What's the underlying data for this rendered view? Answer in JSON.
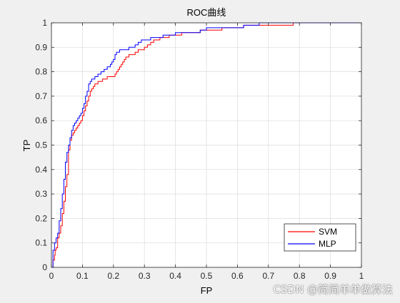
{
  "watermark": "CSDN @简简单单做算法",
  "chart_data": {
    "type": "line",
    "title": "ROC曲线",
    "xlabel": "FP",
    "ylabel": "TP",
    "xlim": [
      0,
      1
    ],
    "ylim": [
      0,
      1
    ],
    "xticks": [
      0,
      0.1,
      0.2,
      0.3,
      0.4,
      0.5,
      0.6,
      0.7,
      0.8,
      0.9,
      1
    ],
    "yticks": [
      0,
      0.1,
      0.2,
      0.3,
      0.4,
      0.5,
      0.6,
      0.7,
      0.8,
      0.9,
      1
    ],
    "xtick_labels": [
      "0",
      "0.1",
      "0.2",
      "0.3",
      "0.4",
      "0.5",
      "0.6",
      "0.7",
      "0.8",
      "0.9",
      "1"
    ],
    "ytick_labels": [
      "0",
      "0.1",
      "0.2",
      "0.3",
      "0.4",
      "0.5",
      "0.6",
      "0.7",
      "0.8",
      "0.9",
      "1"
    ],
    "grid": true,
    "legend_position": "bottom-right",
    "series": [
      {
        "name": "SVM",
        "color": "#ff0000",
        "x": [
          0,
          0.005,
          0.01,
          0.012,
          0.015,
          0.02,
          0.025,
          0.03,
          0.035,
          0.04,
          0.045,
          0.05,
          0.055,
          0.06,
          0.065,
          0.07,
          0.075,
          0.08,
          0.085,
          0.09,
          0.095,
          0.1,
          0.105,
          0.11,
          0.115,
          0.12,
          0.125,
          0.13,
          0.135,
          0.14,
          0.145,
          0.15,
          0.155,
          0.16,
          0.165,
          0.17,
          0.175,
          0.18,
          0.19,
          0.2,
          0.205,
          0.21,
          0.215,
          0.22,
          0.225,
          0.23,
          0.235,
          0.24,
          0.245,
          0.25,
          0.26,
          0.27,
          0.28,
          0.29,
          0.3,
          0.31,
          0.32,
          0.33,
          0.34,
          0.35,
          0.36,
          0.38,
          0.4,
          0.42,
          0.44,
          0.46,
          0.48,
          0.5,
          0.55,
          0.6,
          0.62,
          0.65,
          0.7,
          0.75,
          0.78
        ],
        "y": [
          0,
          0.03,
          0.05,
          0.07,
          0.08,
          0.12,
          0.14,
          0.17,
          0.22,
          0.27,
          0.33,
          0.38,
          0.48,
          0.52,
          0.54,
          0.55,
          0.56,
          0.57,
          0.58,
          0.59,
          0.6,
          0.62,
          0.64,
          0.66,
          0.68,
          0.7,
          0.72,
          0.73,
          0.74,
          0.75,
          0.75,
          0.76,
          0.76,
          0.76,
          0.77,
          0.77,
          0.77,
          0.78,
          0.78,
          0.78,
          0.79,
          0.8,
          0.81,
          0.82,
          0.83,
          0.84,
          0.85,
          0.86,
          0.86,
          0.87,
          0.87,
          0.88,
          0.89,
          0.89,
          0.9,
          0.91,
          0.92,
          0.93,
          0.93,
          0.94,
          0.94,
          0.95,
          0.95,
          0.96,
          0.96,
          0.96,
          0.97,
          0.97,
          0.98,
          0.98,
          0.99,
          0.99,
          0.99,
          0.99,
          1
        ]
      },
      {
        "name": "MLP",
        "color": "#0000ff",
        "x": [
          0,
          0.005,
          0.01,
          0.015,
          0.02,
          0.025,
          0.03,
          0.035,
          0.04,
          0.045,
          0.05,
          0.055,
          0.06,
          0.065,
          0.07,
          0.075,
          0.08,
          0.085,
          0.09,
          0.095,
          0.1,
          0.105,
          0.11,
          0.115,
          0.12,
          0.125,
          0.13,
          0.135,
          0.14,
          0.145,
          0.15,
          0.155,
          0.16,
          0.165,
          0.17,
          0.175,
          0.18,
          0.185,
          0.19,
          0.195,
          0.2,
          0.205,
          0.21,
          0.215,
          0.22,
          0.23,
          0.24,
          0.25,
          0.26,
          0.27,
          0.28,
          0.29,
          0.3,
          0.32,
          0.34,
          0.36,
          0.38,
          0.4,
          0.44,
          0.48,
          0.5,
          0.55,
          0.6,
          0.62,
          0.65,
          0.67,
          0.7,
          0.8,
          0.9,
          1
        ],
        "y": [
          0,
          0.07,
          0.1,
          0.12,
          0.14,
          0.19,
          0.24,
          0.3,
          0.36,
          0.43,
          0.47,
          0.5,
          0.53,
          0.56,
          0.58,
          0.59,
          0.6,
          0.61,
          0.62,
          0.63,
          0.65,
          0.67,
          0.7,
          0.72,
          0.75,
          0.76,
          0.77,
          0.77,
          0.78,
          0.78,
          0.79,
          0.79,
          0.8,
          0.8,
          0.81,
          0.81,
          0.82,
          0.82,
          0.83,
          0.84,
          0.85,
          0.87,
          0.88,
          0.88,
          0.89,
          0.89,
          0.89,
          0.9,
          0.9,
          0.91,
          0.92,
          0.93,
          0.93,
          0.94,
          0.94,
          0.95,
          0.95,
          0.96,
          0.96,
          0.97,
          0.98,
          0.98,
          0.98,
          0.99,
          0.99,
          1,
          1,
          1,
          1,
          1
        ]
      }
    ]
  }
}
